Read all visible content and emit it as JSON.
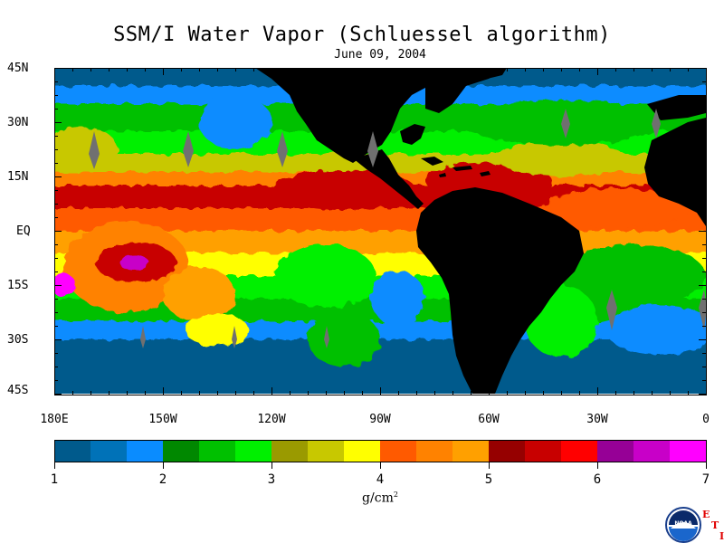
{
  "title": "SSM/I Water Vapor (Schluessel algorithm)",
  "date": "June 09, 2004",
  "lat_labels": [
    "45N",
    "30N",
    "15N",
    "EQ",
    "15S",
    "30S",
    "45S"
  ],
  "lon_labels": [
    "180E",
    "150W",
    "120W",
    "90W",
    "60W",
    "30W",
    "0"
  ],
  "colorbar": {
    "ticks": [
      "1",
      "2",
      "3",
      "4",
      "5",
      "6",
      "7"
    ],
    "units": "g/cm",
    "units_sup": "2",
    "colors": [
      "#005a8c",
      "#0072b8",
      "#0a8cff",
      "#008800",
      "#00c000",
      "#00f000",
      "#9a9a00",
      "#c8c800",
      "#ffff00",
      "#ff5a00",
      "#ff8200",
      "#ffa000",
      "#960000",
      "#c80000",
      "#ff0000",
      "#960096",
      "#c800c8",
      "#ff00ff"
    ]
  },
  "logo": {
    "text": "NOAA",
    "mark": [
      "E",
      "T",
      "I"
    ]
  },
  "palette": {
    "land": "#000000",
    "ice": "#707070",
    "frame": "#000000"
  }
}
